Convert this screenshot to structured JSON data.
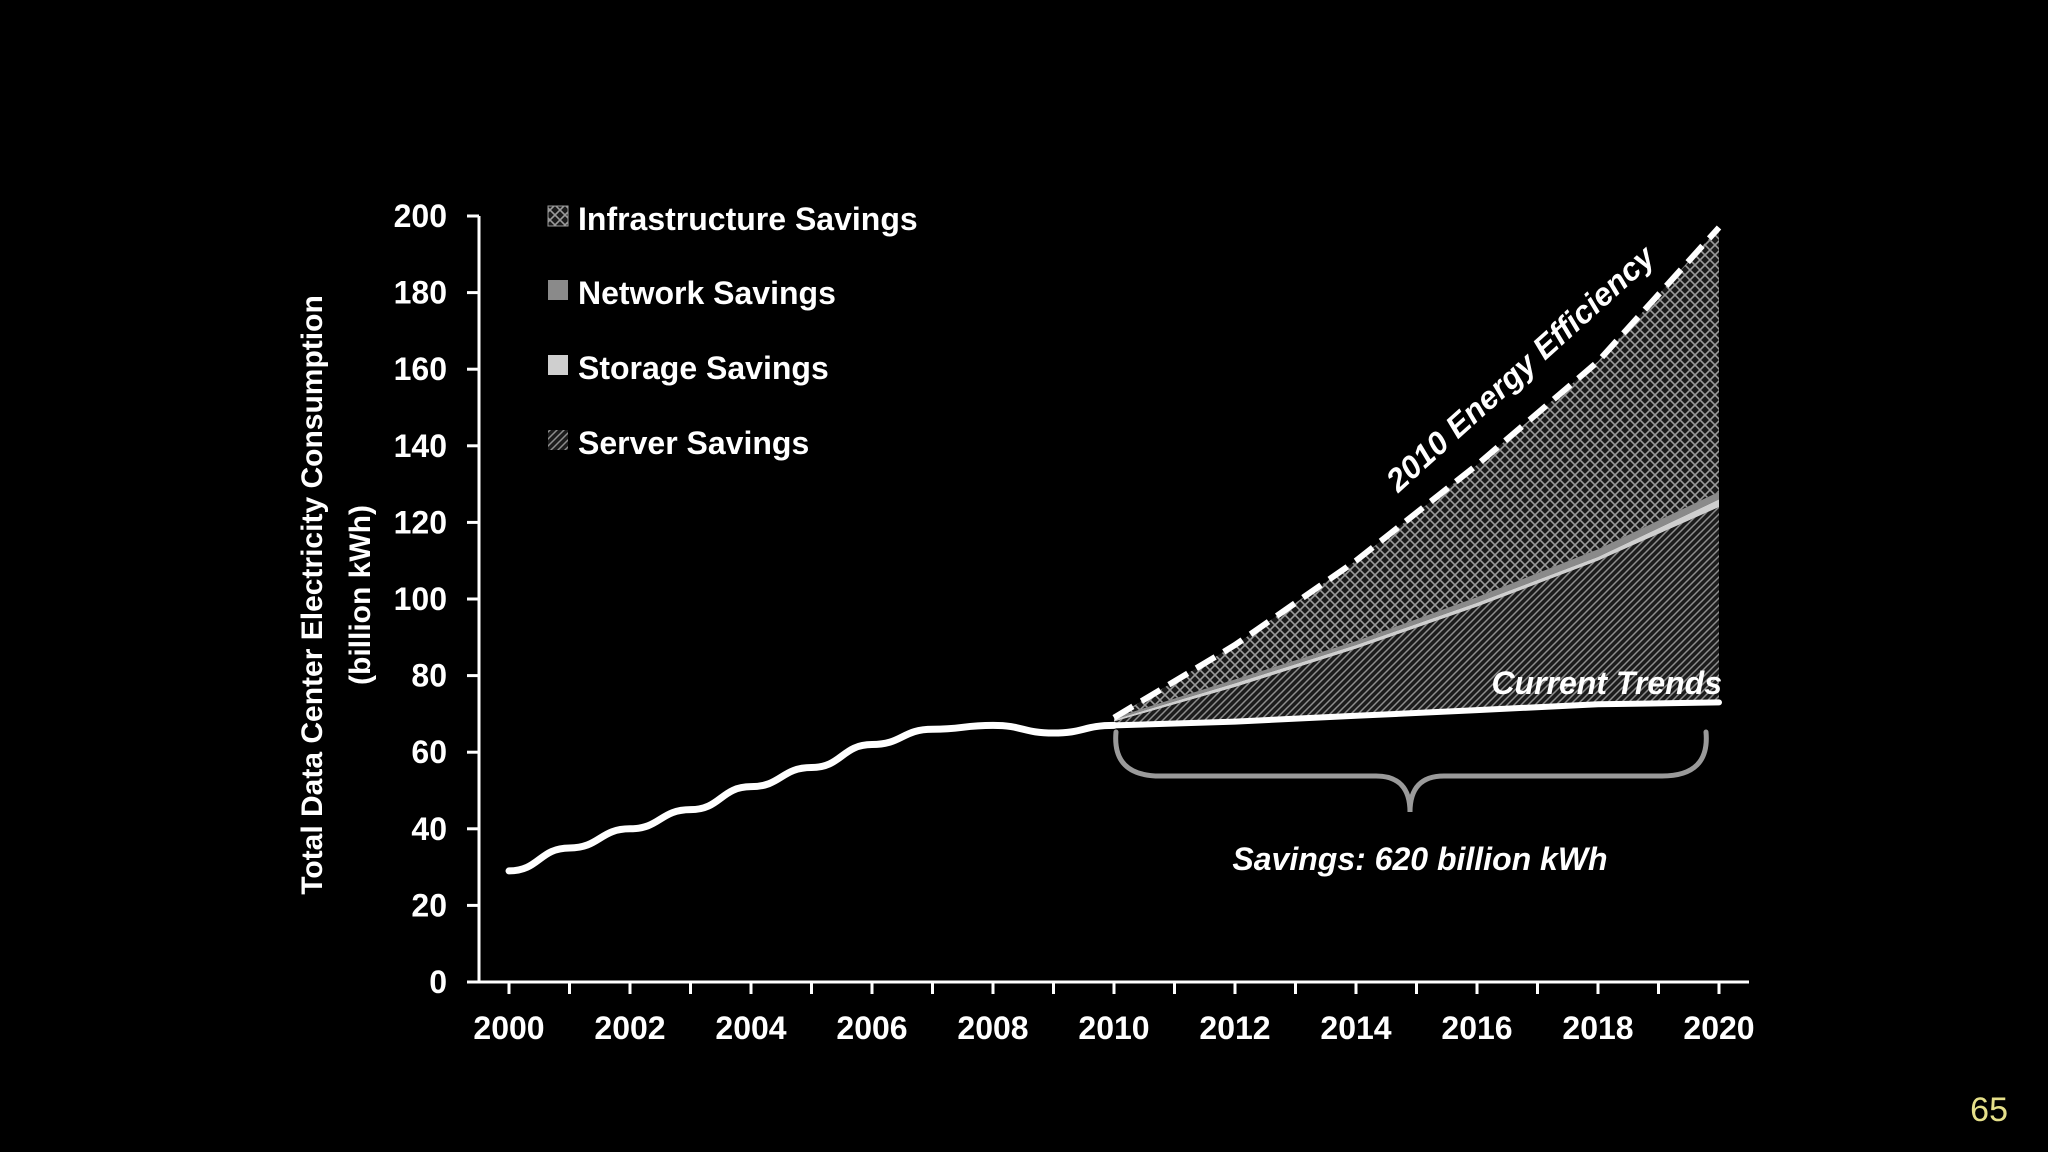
{
  "page_number": "65",
  "chart_data": {
    "type": "area",
    "title": "",
    "ylabel_line1": "Total Data Center Electricity Consumption",
    "ylabel_line2": "(billion kWh)",
    "xlabel": "",
    "xlim": [
      2000,
      2020
    ],
    "ylim": [
      0,
      200
    ],
    "x_ticks": [
      2000,
      2002,
      2004,
      2006,
      2008,
      2010,
      2012,
      2014,
      2016,
      2018,
      2020
    ],
    "y_ticks": [
      0,
      20,
      40,
      60,
      80,
      100,
      120,
      140,
      160,
      180,
      200
    ],
    "legend": [
      {
        "name": "Infrastructure Savings",
        "icon": "crosshatch"
      },
      {
        "name": "Network Savings",
        "icon": "gray-solid"
      },
      {
        "name": "Storage Savings",
        "icon": "light-solid"
      },
      {
        "name": "Server Savings",
        "icon": "diagonal-hatch"
      }
    ],
    "series": [
      {
        "name": "Historical",
        "x": [
          2000,
          2001,
          2002,
          2003,
          2004,
          2005,
          2006,
          2007,
          2008,
          2009,
          2010
        ],
        "values": [
          29,
          35,
          40,
          45,
          51,
          56,
          62,
          66,
          67,
          65,
          67
        ]
      },
      {
        "name": "Current Trends",
        "x": [
          2010,
          2012,
          2014,
          2016,
          2018,
          2020
        ],
        "values": [
          67,
          68,
          69.5,
          71,
          72.5,
          73
        ]
      },
      {
        "name": "Server Savings upper",
        "x": [
          2010,
          2012,
          2014,
          2016,
          2018,
          2020
        ],
        "values": [
          68,
          77,
          87,
          98,
          110,
          124
        ]
      },
      {
        "name": "Storage Savings upper",
        "x": [
          2010,
          2012,
          2014,
          2016,
          2018,
          2020
        ],
        "values": [
          68.5,
          78,
          88,
          99,
          111,
          126
        ]
      },
      {
        "name": "Network Savings upper",
        "x": [
          2010,
          2012,
          2014,
          2016,
          2018,
          2020
        ],
        "values": [
          69,
          79,
          89,
          100.5,
          113,
          128
        ]
      },
      {
        "name": "2010 Energy Efficiency",
        "x": [
          2010,
          2012,
          2014,
          2016,
          2018,
          2020
        ],
        "values": [
          69,
          88,
          110,
          135,
          162,
          197
        ]
      }
    ],
    "annotations": {
      "efficiency_label": "2010 Energy Efficiency",
      "current_trends_label": "Current Trends",
      "savings_label": "Savings: 620 billion kWh"
    },
    "colors": {
      "background": "#000000",
      "line": "#ffffff",
      "hatch": "#9a9a9a",
      "network": "#8a8a8a",
      "storage": "#cfcfcf",
      "brace": "#9a9a9a",
      "page_number": "#e6e08a"
    }
  }
}
